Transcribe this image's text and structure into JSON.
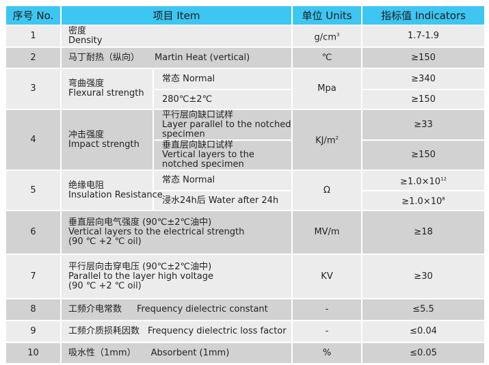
{
  "header": {
    "no": "序号 No.",
    "item": "项目  Item",
    "units": "单位  Units",
    "indicators": "指标值    Indicators"
  },
  "colors": {
    "header_bg": "#3ec6f2",
    "row_light": "#ececec",
    "row_dark": "#d2d2d2"
  },
  "rows": [
    {
      "no": "1",
      "item_cn": "密度",
      "item_en": "Density",
      "unit": "g/cm",
      "unit_sup": "3",
      "value": "1.7-1.9"
    },
    {
      "no": "2",
      "item_cn": "马丁耐热（纵向）",
      "item_en": "Martin Heat (vertical)",
      "unit": "℃",
      "value": "≥150"
    },
    {
      "no": "3",
      "item_cn": "弯曲强度",
      "item_en": "Flexural strength",
      "unit": "Mpa",
      "sub": [
        {
          "cond": "常态   Normal",
          "value": "≥340"
        },
        {
          "cond": "280℃±2℃",
          "value": "≥150"
        }
      ]
    },
    {
      "no": "4",
      "item_cn": "冲击强度",
      "item_en": "Impact strength",
      "unit": "KJ/m",
      "unit_sup": "2",
      "sub": [
        {
          "cond_cn": "平行层向缺口试样",
          "cond_en": "Layer parallel to the notched specimen",
          "value": "≥33"
        },
        {
          "cond_cn": "垂直层向缺口试样",
          "cond_en": "Vertical layers to the notched specimen",
          "value": "≥150"
        }
      ]
    },
    {
      "no": "5",
      "item_cn": "绝缘电阻",
      "item_en": "Insulation  Resistance",
      "unit": "Ω",
      "sub": [
        {
          "cond": "常态   Normal",
          "value": "≥1.0×10",
          "value_sup": "12"
        },
        {
          "cond": "浸水24h后   Water after 24h",
          "value": "≥1.0×10",
          "value_sup": "8"
        }
      ]
    },
    {
      "no": "6",
      "line1": "垂直层向电气强度      (90℃±2℃油中)",
      "line2": "Vertical layers to the electrical strength",
      "line3": "(90 ℃ +2 ℃ oil)",
      "unit": "MV/m",
      "value": "≥18"
    },
    {
      "no": "7",
      "line1": "平行层向击穿电压  (90℃±2℃油中)",
      "line2": "Parallel to the layer high voltage",
      "line3": "(90 ℃ +2 ℃ oil)",
      "unit": "KV",
      "value": "≥30"
    },
    {
      "no": "8",
      "item_cn": "工频介电常数",
      "item_en": "Frequency dielectric constant",
      "unit": "-",
      "value": "≤5.5"
    },
    {
      "no": "9",
      "item_cn": "工频介质损耗因数",
      "item_en": "Frequency dielectric loss factor",
      "unit": "-",
      "value": "≤0.04"
    },
    {
      "no": "10",
      "item_cn": "吸水性（1mm）",
      "item_en": "Absorbent (1mm)",
      "unit": "%",
      "value": "≤0.05"
    }
  ]
}
